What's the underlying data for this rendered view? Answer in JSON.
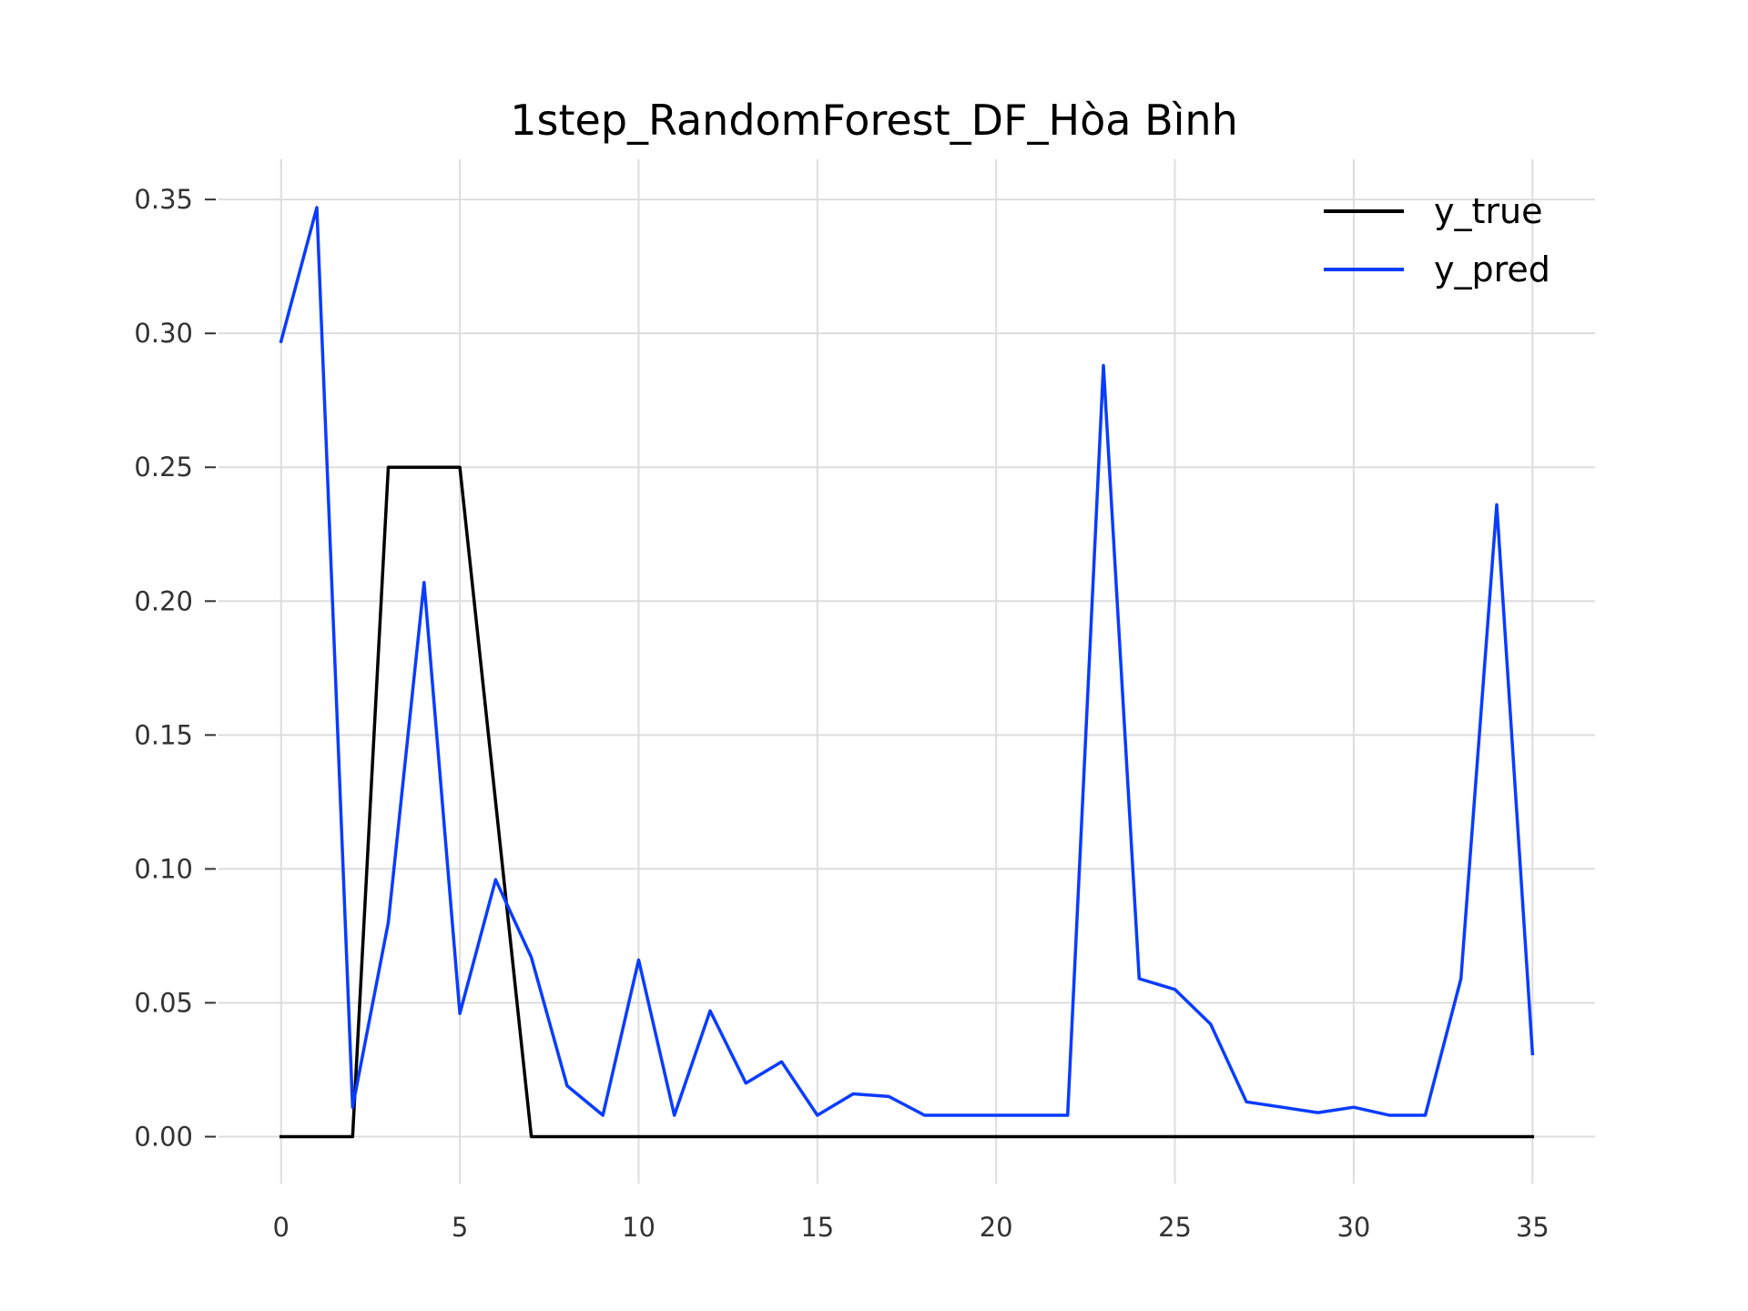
{
  "chart_data": {
    "type": "line",
    "title": "1step_RandomForest_DF_Hòa Bình",
    "xlabel": "",
    "ylabel": "",
    "xlim": [
      -1.75,
      36.75
    ],
    "ylim": [
      -0.0175,
      0.365
    ],
    "xticks": [
      0,
      5,
      10,
      15,
      20,
      25,
      30,
      35
    ],
    "yticks": [
      0.0,
      0.05,
      0.1,
      0.15,
      0.2,
      0.25,
      0.3,
      0.35
    ],
    "ytick_labels": [
      "0.00",
      "0.05",
      "0.10",
      "0.15",
      "0.20",
      "0.25",
      "0.30",
      "0.35"
    ],
    "grid": true,
    "legend_position": "top-right",
    "x": [
      0,
      1,
      2,
      3,
      4,
      5,
      6,
      7,
      8,
      9,
      10,
      11,
      12,
      13,
      14,
      15,
      16,
      17,
      18,
      19,
      20,
      21,
      22,
      23,
      24,
      25,
      26,
      27,
      28,
      29,
      30,
      31,
      32,
      33,
      34,
      35
    ],
    "series": [
      {
        "name": "y_true",
        "color": "#000000",
        "values": [
          0,
          0,
          0,
          0.25,
          0.25,
          0.25,
          0.125,
          0,
          0,
          0,
          0,
          0,
          0,
          0,
          0,
          0,
          0,
          0,
          0,
          0,
          0,
          0,
          0,
          0,
          0,
          0,
          0,
          0,
          0,
          0,
          0,
          0,
          0,
          0,
          0,
          0
        ]
      },
      {
        "name": "y_pred",
        "color": "#0a3cff",
        "values": [
          0.297,
          0.347,
          0.011,
          0.08,
          0.207,
          0.046,
          0.096,
          0.067,
          0.019,
          0.008,
          0.066,
          0.008,
          0.047,
          0.02,
          0.028,
          0.008,
          0.016,
          0.015,
          0.008,
          0.008,
          0.008,
          0.008,
          0.008,
          0.288,
          0.059,
          0.055,
          0.042,
          0.013,
          0.011,
          0.009,
          0.011,
          0.008,
          0.008,
          0.059,
          0.236,
          0.031
        ]
      }
    ]
  }
}
